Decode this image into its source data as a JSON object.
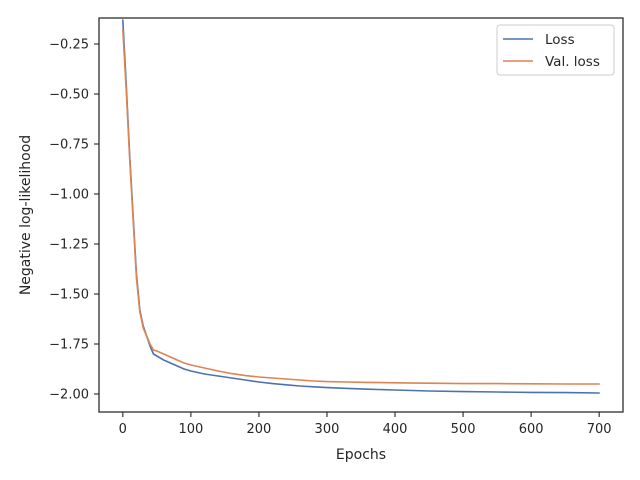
{
  "chart_data": {
    "type": "line",
    "xlabel": "Epochs",
    "ylabel": "Negative log-likelihood",
    "xlim": [
      -35,
      735
    ],
    "ylim": [
      -2.09,
      -0.12
    ],
    "xticks": [
      0,
      100,
      200,
      300,
      400,
      500,
      600,
      700
    ],
    "yticks": [
      -0.25,
      -0.5,
      -0.75,
      -1.0,
      -1.25,
      -1.5,
      -1.75,
      -2.0
    ],
    "xtick_labels": [
      "0",
      "100",
      "200",
      "300",
      "400",
      "500",
      "600",
      "700"
    ],
    "ytick_labels": [
      "−0.25",
      "−0.50",
      "−0.75",
      "−1.00",
      "−1.25",
      "−1.50",
      "−1.75",
      "−2.00"
    ],
    "grid": false,
    "legend_position": "top-right",
    "series": [
      {
        "name": "Loss",
        "color": "#4c72b0",
        "points": [
          [
            0,
            -0.13
          ],
          [
            5,
            -0.45
          ],
          [
            10,
            -0.8
          ],
          [
            15,
            -1.1
          ],
          [
            20,
            -1.4
          ],
          [
            25,
            -1.58
          ],
          [
            30,
            -1.66
          ],
          [
            35,
            -1.71
          ],
          [
            40,
            -1.76
          ],
          [
            45,
            -1.8
          ],
          [
            50,
            -1.81
          ],
          [
            60,
            -1.83
          ],
          [
            70,
            -1.845
          ],
          [
            80,
            -1.86
          ],
          [
            90,
            -1.875
          ],
          [
            100,
            -1.885
          ],
          [
            120,
            -1.9
          ],
          [
            140,
            -1.91
          ],
          [
            160,
            -1.92
          ],
          [
            180,
            -1.93
          ],
          [
            200,
            -1.94
          ],
          [
            220,
            -1.948
          ],
          [
            240,
            -1.954
          ],
          [
            260,
            -1.96
          ],
          [
            280,
            -1.964
          ],
          [
            300,
            -1.968
          ],
          [
            330,
            -1.972
          ],
          [
            360,
            -1.976
          ],
          [
            400,
            -1.98
          ],
          [
            450,
            -1.985
          ],
          [
            500,
            -1.988
          ],
          [
            550,
            -1.99
          ],
          [
            600,
            -1.992
          ],
          [
            650,
            -1.993
          ],
          [
            700,
            -1.995
          ]
        ]
      },
      {
        "name": "Val. loss",
        "color": "#dd8452",
        "points": [
          [
            0,
            -0.18
          ],
          [
            5,
            -0.48
          ],
          [
            10,
            -0.82
          ],
          [
            15,
            -1.12
          ],
          [
            20,
            -1.42
          ],
          [
            25,
            -1.59
          ],
          [
            30,
            -1.67
          ],
          [
            35,
            -1.71
          ],
          [
            40,
            -1.75
          ],
          [
            45,
            -1.78
          ],
          [
            50,
            -1.785
          ],
          [
            60,
            -1.8
          ],
          [
            70,
            -1.815
          ],
          [
            80,
            -1.83
          ],
          [
            90,
            -1.845
          ],
          [
            100,
            -1.855
          ],
          [
            120,
            -1.87
          ],
          [
            140,
            -1.885
          ],
          [
            160,
            -1.898
          ],
          [
            180,
            -1.908
          ],
          [
            200,
            -1.915
          ],
          [
            220,
            -1.92
          ],
          [
            240,
            -1.925
          ],
          [
            260,
            -1.93
          ],
          [
            280,
            -1.935
          ],
          [
            300,
            -1.938
          ],
          [
            330,
            -1.94
          ],
          [
            360,
            -1.942
          ],
          [
            400,
            -1.944
          ],
          [
            450,
            -1.946
          ],
          [
            500,
            -1.948
          ],
          [
            550,
            -1.948
          ],
          [
            600,
            -1.949
          ],
          [
            650,
            -1.95
          ],
          [
            700,
            -1.95
          ]
        ]
      }
    ]
  }
}
